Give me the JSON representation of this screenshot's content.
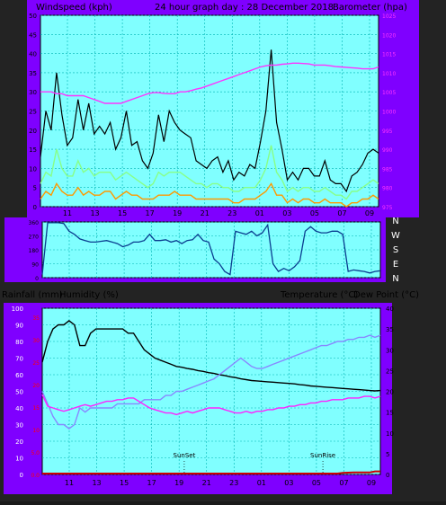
{
  "colors": {
    "frame": "#7f00ff",
    "plot_bg": "#80ffff",
    "grid": "#00b3b3",
    "black": "#000000",
    "white": "#ffffff",
    "axis_label": "#000000",
    "wind_black": "#000000",
    "wind_green": "#88ff88",
    "wind_orange": "#ff9900",
    "barometer": "#ff33ff",
    "direction": "#0a3d8f",
    "temperature": "#000000",
    "dewpoint": "#8888ff",
    "humidity": "#ff22ff",
    "rain": "#cc0000",
    "rain_left_ticks": "#ff0000"
  },
  "header": {
    "wind_title": "Windspeed (kph)",
    "main_title": "24 hour graph day : 28 December 2018",
    "baro_title": "Barometer (hpa)"
  },
  "bottom_header": {
    "rainfall_title": "Rainfall (mm)",
    "humidity_title": "Humidity (%)",
    "temp_title": "Temperature (°C)",
    "dew_title": "Dew Point (°C)"
  },
  "chart_data": [
    {
      "type": "line",
      "name": "wind-barometer",
      "x_ticks": [
        "11",
        "13",
        "15",
        "17",
        "19",
        "21",
        "23",
        "01",
        "03",
        "05",
        "07",
        "09"
      ],
      "ylim_left": [
        0,
        50
      ],
      "yticks_left": [
        0,
        5,
        10,
        15,
        20,
        25,
        30,
        35,
        40,
        45,
        50
      ],
      "ylim_right": [
        975,
        1025
      ],
      "yticks_right": [
        975,
        980,
        985,
        990,
        995,
        1000,
        1005,
        1010,
        1015,
        1020,
        1025
      ],
      "series": [
        {
          "key": "gust",
          "values": [
            13,
            25,
            20,
            35,
            24,
            16,
            18,
            28,
            20,
            27,
            19,
            21,
            19,
            22,
            15,
            18,
            25,
            16,
            17,
            12,
            10,
            14,
            24,
            17,
            25,
            22,
            20,
            19,
            18,
            12,
            11,
            10,
            12,
            13,
            9,
            12,
            7,
            9,
            8,
            11,
            10,
            17,
            25,
            41,
            22,
            15,
            7,
            9,
            7,
            10,
            10,
            8,
            8,
            12,
            7,
            6,
            6,
            4,
            8,
            9,
            11,
            14,
            15,
            14
          ]
        },
        {
          "key": "avg",
          "values": [
            6,
            9,
            8,
            15,
            10,
            8,
            8,
            12,
            9,
            10,
            8,
            9,
            9,
            9,
            7,
            8,
            9,
            8,
            7,
            6,
            5,
            6,
            9,
            8,
            9,
            9,
            9,
            8,
            7,
            6,
            6,
            5,
            6,
            6,
            5,
            5,
            4,
            4,
            5,
            5,
            5,
            7,
            10,
            16,
            9,
            7,
            4,
            5,
            4,
            5,
            5,
            4,
            4,
            5,
            4,
            3,
            3,
            2,
            4,
            4,
            5,
            6,
            7,
            6
          ]
        },
        {
          "key": "low",
          "values": [
            2,
            4,
            3,
            6,
            4,
            3,
            3,
            5,
            3,
            4,
            3,
            3,
            4,
            4,
            2,
            3,
            4,
            3,
            3,
            2,
            2,
            2,
            3,
            3,
            3,
            4,
            3,
            3,
            3,
            2,
            2,
            2,
            2,
            2,
            2,
            2,
            1,
            1,
            2,
            2,
            2,
            3,
            4,
            6,
            3,
            3,
            1,
            2,
            1,
            2,
            2,
            1,
            1,
            2,
            1,
            1,
            1,
            0,
            1,
            1,
            2,
            2,
            3,
            2
          ]
        },
        {
          "key": "barometer",
          "values": [
            1005,
            1005,
            1005,
            1004.5,
            1004.5,
            1004,
            1004,
            1004,
            1004,
            1003.5,
            1003,
            1002.5,
            1002,
            1002,
            1002,
            1002,
            1002.5,
            1003,
            1003.5,
            1004,
            1004.5,
            1004.8,
            1004.8,
            1004.6,
            1004.5,
            1004.5,
            1005,
            1005,
            1005.3,
            1005.7,
            1006,
            1006.5,
            1007,
            1007.5,
            1008,
            1008.5,
            1009,
            1009.5,
            1010,
            1010.5,
            1011,
            1011.5,
            1011.8,
            1012,
            1012,
            1012.2,
            1012.3,
            1012.5,
            1012.5,
            1012.4,
            1012.3,
            1012,
            1012,
            1012,
            1011.8,
            1011.6,
            1011.5,
            1011.4,
            1011.3,
            1011.2,
            1011,
            1011,
            1011,
            1011.5
          ]
        }
      ]
    },
    {
      "type": "line",
      "name": "wind-direction",
      "ylim": [
        0,
        360
      ],
      "yticks": [
        0,
        90,
        180,
        270,
        360
      ],
      "y_labels_right": [
        "N",
        "W",
        "S",
        "E",
        "N"
      ],
      "series": [
        {
          "key": "direction",
          "values": [
            20,
            355,
            355,
            355,
            350,
            300,
            280,
            250,
            240,
            230,
            230,
            235,
            240,
            230,
            220,
            200,
            210,
            230,
            230,
            240,
            280,
            240,
            240,
            245,
            230,
            240,
            220,
            240,
            245,
            280,
            240,
            230,
            120,
            90,
            40,
            20,
            300,
            290,
            280,
            300,
            270,
            290,
            340,
            90,
            40,
            60,
            45,
            70,
            110,
            300,
            330,
            300,
            290,
            290,
            300,
            300,
            280,
            40,
            50,
            45,
            40,
            30,
            40,
            45
          ]
        }
      ]
    },
    {
      "type": "line",
      "name": "temperature-humidity-rain",
      "x_ticks": [
        "11",
        "13",
        "15",
        "17",
        "19",
        "21",
        "23",
        "01",
        "03",
        "05",
        "07",
        "09"
      ],
      "ylim_left": [
        0,
        100
      ],
      "yticks_left_humidity": [
        0,
        10,
        20,
        30,
        40,
        50,
        60,
        70,
        80,
        90,
        100
      ],
      "yticks_left_rain": [
        "0.0",
        "5.0",
        "10",
        "15",
        "20",
        "25",
        "30",
        "35"
      ],
      "ylim_right": [
        0,
        40
      ],
      "yticks_right": [
        0,
        5,
        10,
        15,
        20,
        25,
        30,
        35,
        40
      ],
      "annotations": [
        {
          "label": "SunSet",
          "x": 0.42
        },
        {
          "label": "SunRise",
          "x": 0.83
        }
      ],
      "series": [
        {
          "key": "temperature",
          "values": [
            27,
            32,
            35,
            36,
            36,
            37,
            36,
            31,
            31,
            34,
            35,
            35,
            35,
            35,
            35,
            35,
            34,
            34,
            32,
            30,
            29,
            28,
            27.5,
            27,
            26.5,
            26,
            25.8,
            25.5,
            25.3,
            25,
            24.8,
            24.5,
            24.3,
            24,
            23.8,
            23.5,
            23.3,
            23,
            22.8,
            22.6,
            22.5,
            22.4,
            22.3,
            22.2,
            22.1,
            22,
            21.9,
            21.8,
            21.6,
            21.5,
            21.3,
            21.2,
            21.1,
            21,
            20.9,
            20.8,
            20.7,
            20.6,
            20.5,
            20.4,
            20.3,
            20.2,
            20.1,
            20.2
          ]
        },
        {
          "key": "dewpoint",
          "values": [
            20,
            17,
            14,
            12,
            12,
            11,
            12,
            16,
            15,
            16,
            16,
            16,
            16,
            16,
            17,
            17,
            17,
            17,
            17,
            18,
            18,
            18,
            18,
            19,
            19,
            20,
            20,
            20.5,
            21,
            21.5,
            22,
            22.5,
            23,
            24,
            25,
            26,
            27,
            28,
            27,
            26,
            25.5,
            25.5,
            26,
            26.5,
            27,
            27.5,
            28,
            28.5,
            29,
            29.5,
            30,
            30.5,
            31,
            31,
            31.5,
            32,
            32,
            32.5,
            32.5,
            33,
            33,
            33.5,
            33,
            33.5
          ]
        },
        {
          "key": "humidity",
          "values": [
            48,
            41,
            40,
            39,
            38,
            39,
            40,
            41,
            42,
            41,
            42,
            43,
            44,
            44,
            45,
            45,
            46,
            46,
            44,
            42,
            40,
            39,
            38,
            37,
            37,
            36,
            37,
            38,
            37,
            38,
            39,
            40,
            40,
            40,
            39,
            38,
            37,
            37,
            38,
            37,
            38,
            38,
            39,
            39,
            40,
            40,
            41,
            41,
            42,
            42,
            43,
            43,
            44,
            44,
            45,
            45,
            45,
            46,
            46,
            46,
            47,
            47,
            46,
            47
          ]
        },
        {
          "key": "rain",
          "values": [
            0,
            0,
            0,
            0,
            0,
            0,
            0,
            0,
            0,
            0,
            0,
            0,
            0,
            0,
            0,
            0,
            0,
            0,
            0,
            0,
            0,
            0,
            0,
            0,
            0,
            0,
            0,
            0,
            0,
            0,
            0,
            0,
            0,
            0,
            0,
            0,
            0,
            0,
            0,
            0,
            0,
            0,
            0,
            0,
            0,
            0,
            0,
            0,
            0,
            0,
            0,
            0,
            0,
            0,
            0,
            0,
            0.4,
            0.5,
            0.6,
            0.6,
            0.6,
            0.6,
            1.2,
            1.2
          ]
        }
      ]
    }
  ]
}
